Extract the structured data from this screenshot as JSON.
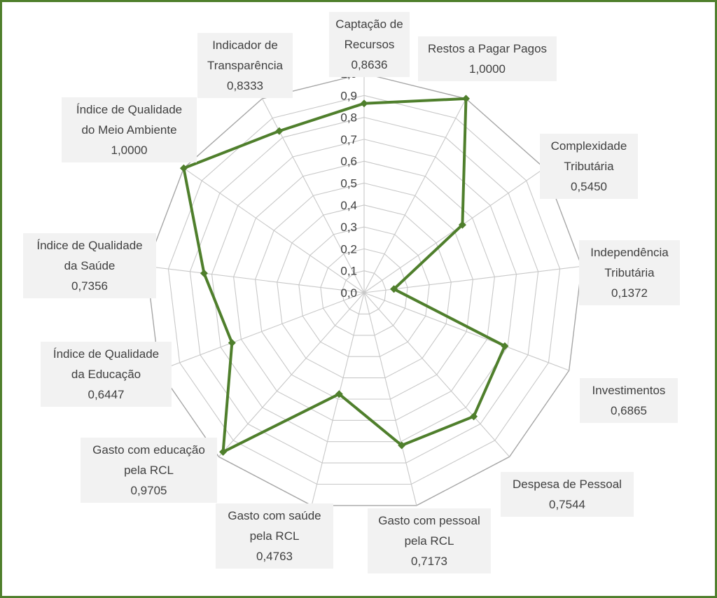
{
  "chart_data": {
    "type": "radar",
    "title": "",
    "rlim": [
      0,
      1.0
    ],
    "ticks": [
      "0,0",
      "0,1",
      "0,2",
      "0,3",
      "0,4",
      "0,5",
      "0,6",
      "0,7",
      "0,8",
      "0,9",
      "1,0"
    ],
    "grid": true,
    "line_color": "#4f7f2c",
    "categories": [
      {
        "lines": [
          "Captação de",
          "Recursos"
        ],
        "value_label": "0,8636"
      },
      {
        "lines": [
          "Restos a Pagar Pagos"
        ],
        "value_label": "1,0000"
      },
      {
        "lines": [
          "Complexidade",
          "Tributária"
        ],
        "value_label": "0,5450"
      },
      {
        "lines": [
          "Independência",
          "Tributária"
        ],
        "value_label": "0,1372"
      },
      {
        "lines": [
          "Investimentos"
        ],
        "value_label": "0,6865"
      },
      {
        "lines": [
          "Despesa de Pessoal"
        ],
        "value_label": "0,7544"
      },
      {
        "lines": [
          "Gasto com pessoal",
          "pela RCL"
        ],
        "value_label": "0,7173"
      },
      {
        "lines": [
          "Gasto com saúde",
          "pela RCL"
        ],
        "value_label": "0,4763"
      },
      {
        "lines": [
          "Gasto com educação",
          "pela RCL"
        ],
        "value_label": "0,9705"
      },
      {
        "lines": [
          "Índice de Qualidade",
          "da Educação"
        ],
        "value_label": "0,6447"
      },
      {
        "lines": [
          "Índice de Qualidade",
          "da Saúde"
        ],
        "value_label": "0,7356"
      },
      {
        "lines": [
          "Índice de Qualidade",
          "do Meio Ambiente"
        ],
        "value_label": "1,0000"
      },
      {
        "lines": [
          "Indicador de",
          "Transparência"
        ],
        "value_label": "0,8333"
      }
    ],
    "values": [
      0.8636,
      1.0,
      0.545,
      0.1372,
      0.6865,
      0.7544,
      0.7173,
      0.4763,
      0.9705,
      0.6447,
      0.7356,
      1.0,
      0.8333
    ]
  }
}
